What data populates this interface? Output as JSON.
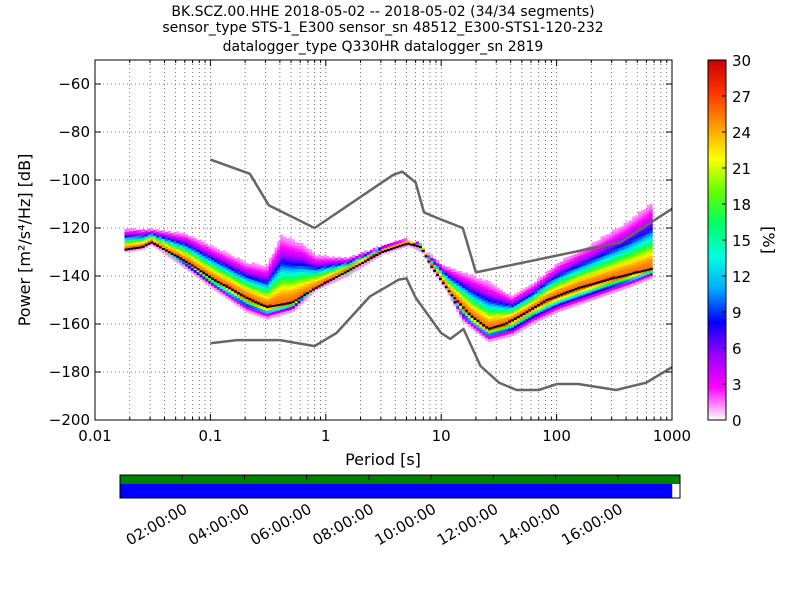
{
  "chart_data": {
    "type": "heatmap",
    "title_lines": [
      "BK.SCZ.00.HHE   2018-05-02 -- 2018-05-02  (34/34 segments)",
      "sensor_type STS-1_E300 sensor_sn 48512_E300-STS1-120-232",
      "datalogger_type Q330HR datalogger_sn 2819"
    ],
    "xlabel": "Period [s]",
    "ylabel": "Power [m²/s⁴/Hz] [dB]",
    "x_scale": "log",
    "xlim": [
      0.01,
      1000
    ],
    "ylim": [
      -200,
      -50
    ],
    "x_ticks": [
      0.01,
      0.1,
      1,
      10,
      100,
      1000
    ],
    "x_tick_labels": [
      "0.01",
      "0.1",
      "1",
      "10",
      "100",
      "1000"
    ],
    "y_ticks": [
      -200,
      -180,
      -160,
      -140,
      -120,
      -100,
      -80,
      -60
    ],
    "grid": true,
    "colorbar": {
      "label": "[%]",
      "range": [
        0,
        30
      ],
      "ticks": [
        0,
        3,
        6,
        9,
        12,
        15,
        18,
        21,
        24,
        27,
        30
      ],
      "colormap": [
        "#ffffff",
        "#ff00ff",
        "#9900ff",
        "#0000ff",
        "#00aaff",
        "#00ffdd",
        "#00ff66",
        "#66ff00",
        "#ffff00",
        "#ff9900",
        "#ff3300",
        "#cc0000"
      ]
    },
    "noise_models": [
      {
        "points": [
          [
            0.1,
            -91.5
          ],
          [
            0.22,
            -97.4
          ],
          [
            0.32,
            -110.5
          ],
          [
            0.8,
            -120
          ],
          [
            3.8,
            -98
          ],
          [
            4.6,
            -96.5
          ],
          [
            6,
            -101
          ],
          [
            7.1,
            -113.5
          ],
          [
            10,
            -116.5
          ],
          [
            15.4,
            -120
          ],
          [
            20,
            -138.5
          ],
          [
            354.8,
            -126
          ],
          [
            1000,
            -112
          ]
        ]
      },
      {
        "points": [
          [
            0.1,
            -168
          ],
          [
            0.17,
            -166.7
          ],
          [
            0.4,
            -166.7
          ],
          [
            0.8,
            -169.2
          ],
          [
            1.24,
            -163.7
          ],
          [
            2.4,
            -148.6
          ],
          [
            4.3,
            -141.5
          ],
          [
            5,
            -141
          ],
          [
            6,
            -149
          ],
          [
            10,
            -163.8
          ],
          [
            12,
            -166.2
          ],
          [
            15.6,
            -162.1
          ],
          [
            21.9,
            -177.5
          ],
          [
            31.6,
            -184.4
          ],
          [
            45,
            -187.5
          ],
          [
            70,
            -187.5
          ],
          [
            101,
            -185
          ],
          [
            154,
            -185
          ],
          [
            328,
            -187.5
          ],
          [
            600,
            -184.4
          ],
          [
            1000,
            -178
          ]
        ]
      }
    ],
    "psd_bands": [
      {
        "name": "mode",
        "points": [
          [
            0.018,
            -129
          ],
          [
            0.025,
            -128
          ],
          [
            0.03,
            -126
          ],
          [
            0.06,
            -134
          ],
          [
            0.1,
            -141
          ],
          [
            0.2,
            -149
          ],
          [
            0.3,
            -153
          ],
          [
            0.5,
            -151
          ],
          [
            0.8,
            -145
          ],
          [
            1.5,
            -138
          ],
          [
            3,
            -130
          ],
          [
            5,
            -126.5
          ],
          [
            6.5,
            -128
          ],
          [
            8,
            -136
          ],
          [
            12,
            -148
          ],
          [
            18,
            -157
          ],
          [
            25,
            -162
          ],
          [
            35,
            -160
          ],
          [
            50,
            -156
          ],
          [
            80,
            -150
          ],
          [
            150,
            -145
          ],
          [
            300,
            -141
          ],
          [
            650,
            -137
          ]
        ]
      },
      {
        "name": "high",
        "points": [
          [
            0.03,
            -121
          ],
          [
            0.06,
            -123
          ],
          [
            0.1,
            -128
          ],
          [
            0.2,
            -135
          ],
          [
            0.3,
            -136.5
          ],
          [
            0.4,
            -123.5
          ],
          [
            0.6,
            -127
          ],
          [
            0.8,
            -132
          ],
          [
            1.5,
            -133
          ],
          [
            3,
            -128
          ],
          [
            5,
            -125
          ],
          [
            7,
            -130
          ],
          [
            10,
            -136
          ],
          [
            15,
            -139
          ],
          [
            25,
            -143
          ],
          [
            40,
            -149
          ],
          [
            60,
            -144
          ],
          [
            100,
            -135
          ],
          [
            200,
            -127
          ],
          [
            400,
            -118
          ],
          [
            650,
            -110
          ]
        ]
      },
      {
        "name": "low",
        "points": [
          [
            0.03,
            -127
          ],
          [
            0.06,
            -137
          ],
          [
            0.1,
            -145
          ],
          [
            0.2,
            -155
          ],
          [
            0.3,
            -158
          ],
          [
            0.5,
            -155
          ],
          [
            0.8,
            -146
          ],
          [
            1.5,
            -140
          ],
          [
            3,
            -131
          ],
          [
            5,
            -127
          ],
          [
            7,
            -131
          ],
          [
            10,
            -143
          ],
          [
            15,
            -159
          ],
          [
            25,
            -167.5
          ],
          [
            40,
            -165
          ],
          [
            60,
            -160
          ],
          [
            100,
            -155
          ],
          [
            200,
            -150
          ],
          [
            400,
            -145
          ],
          [
            650,
            -141
          ]
        ]
      }
    ]
  },
  "timeline": {
    "labels": [
      "02:00:00",
      "04:00:00",
      "06:00:00",
      "08:00:00",
      "10:00:00",
      "12:00:00",
      "14:00:00",
      "16:00:00"
    ],
    "hours": [
      2,
      4,
      6,
      8,
      10,
      12,
      14,
      16
    ],
    "start_hour": 0,
    "end_hour": 17.75,
    "end_hour_full": 18,
    "coverage_color": "#0000ff",
    "data_color": "#008000"
  }
}
